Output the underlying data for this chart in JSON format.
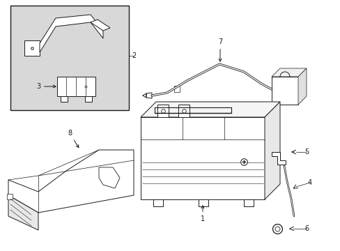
{
  "bg_color": "#ffffff",
  "line_color": "#1a1a1a",
  "inset_bg": "#d8d8d8",
  "figsize": [
    4.89,
    3.6
  ],
  "dpi": 100,
  "lw": 0.7,
  "label_fontsize": 7
}
